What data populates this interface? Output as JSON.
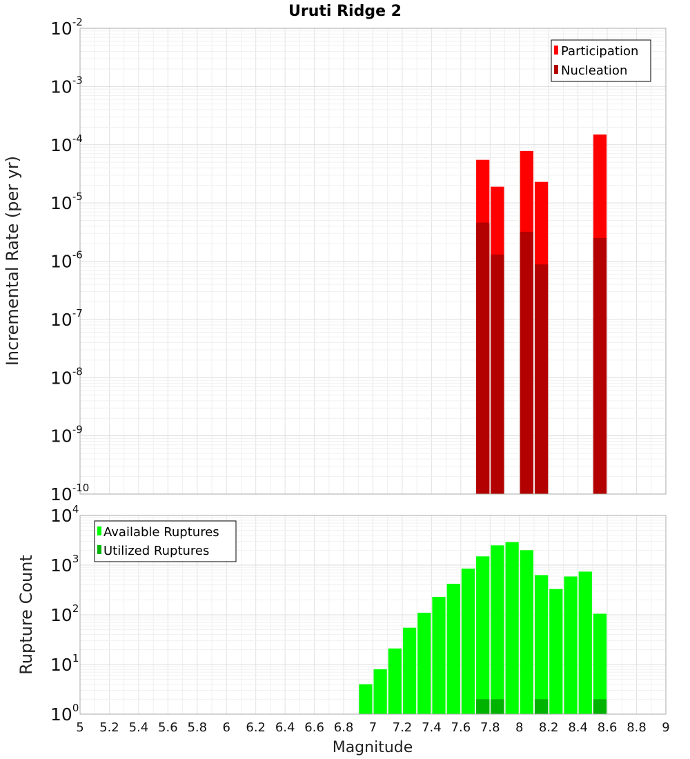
{
  "chart_data": [
    {
      "type": "bar",
      "title": "Uruti Ridge 2",
      "ylabel": "Incremental Rate (per yr)",
      "xlabel": "",
      "yscale": "log",
      "ylim_exp": [
        -10,
        -2
      ],
      "xlim": [
        5,
        9
      ],
      "bin_width": 0.1,
      "legend_position": "top-right",
      "series": [
        {
          "name": "Participation",
          "color": "#ff0000",
          "points": [
            {
              "x": 7.75,
              "y": 5.5e-05
            },
            {
              "x": 7.85,
              "y": 1.9e-05
            },
            {
              "x": 8.05,
              "y": 7.8e-05
            },
            {
              "x": 8.15,
              "y": 2.3e-05
            },
            {
              "x": 8.55,
              "y": 0.00015
            }
          ]
        },
        {
          "name": "Nucleation",
          "color": "#b30000",
          "points": [
            {
              "x": 7.75,
              "y": 4.6e-06
            },
            {
              "x": 7.85,
              "y": 1.3e-06
            },
            {
              "x": 8.05,
              "y": 3.2e-06
            },
            {
              "x": 8.15,
              "y": 8.8e-07
            },
            {
              "x": 8.55,
              "y": 2.5e-06
            }
          ]
        }
      ]
    },
    {
      "type": "bar",
      "title": "",
      "ylabel": "Rupture Count",
      "xlabel": "Magnitude",
      "yscale": "log",
      "ylim_exp": [
        0,
        4
      ],
      "xlim": [
        5,
        9
      ],
      "bin_width": 0.1,
      "legend_position": "top-left",
      "x_ticks": [
        "5",
        "5.2",
        "5.4",
        "5.6",
        "5.8",
        "6",
        "6.2",
        "6.4",
        "6.6",
        "6.8",
        "7",
        "7.2",
        "7.4",
        "7.6",
        "7.8",
        "8",
        "8.2",
        "8.4",
        "8.6",
        "8.8",
        "9"
      ],
      "series": [
        {
          "name": "Available Ruptures",
          "color": "#00ff00",
          "points": [
            {
              "x": 6.75,
              "y": 1
            },
            {
              "x": 6.85,
              "y": 1
            },
            {
              "x": 6.95,
              "y": 4
            },
            {
              "x": 7.05,
              "y": 8
            },
            {
              "x": 7.15,
              "y": 21
            },
            {
              "x": 7.25,
              "y": 55
            },
            {
              "x": 7.35,
              "y": 110
            },
            {
              "x": 7.45,
              "y": 230
            },
            {
              "x": 7.55,
              "y": 420
            },
            {
              "x": 7.65,
              "y": 850
            },
            {
              "x": 7.75,
              "y": 1500
            },
            {
              "x": 7.85,
              "y": 2500
            },
            {
              "x": 7.95,
              "y": 2900
            },
            {
              "x": 8.05,
              "y": 2000
            },
            {
              "x": 8.15,
              "y": 630
            },
            {
              "x": 8.25,
              "y": 330
            },
            {
              "x": 8.35,
              "y": 590
            },
            {
              "x": 8.45,
              "y": 740
            },
            {
              "x": 8.55,
              "y": 105
            }
          ]
        },
        {
          "name": "Utilized Ruptures",
          "color": "#00b300",
          "points": [
            {
              "x": 7.75,
              "y": 2
            },
            {
              "x": 7.85,
              "y": 2
            },
            {
              "x": 8.05,
              "y": 1
            },
            {
              "x": 8.15,
              "y": 2
            },
            {
              "x": 8.55,
              "y": 2
            }
          ]
        }
      ]
    }
  ]
}
